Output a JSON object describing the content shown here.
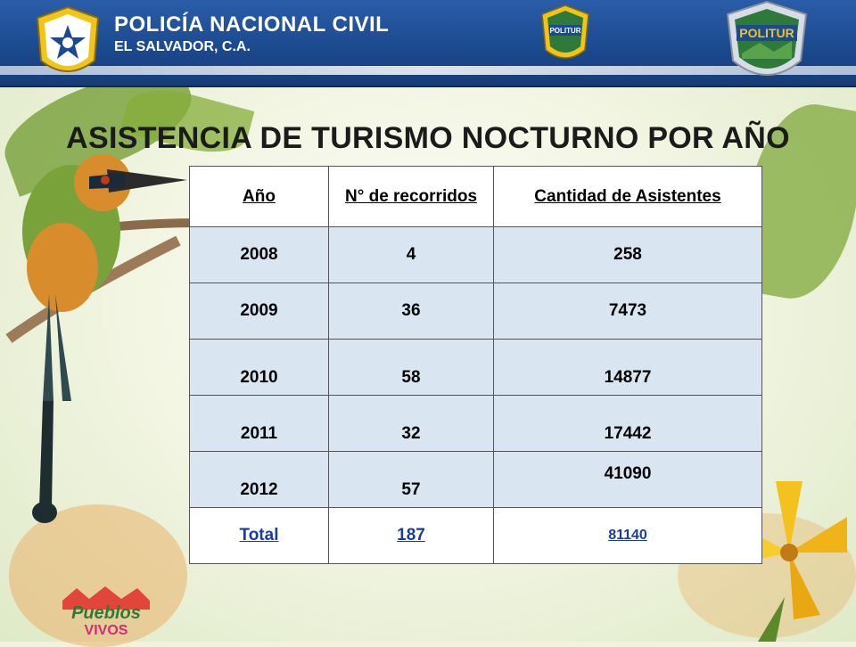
{
  "header": {
    "org_name": "POLICÍA NACIONAL CIVIL",
    "org_location": "EL SALVADOR, C.A.",
    "logo_left_label": "POLICIA NACIONAL CIVIL",
    "politur_small_top": "TURISMO NOCTURNO",
    "politur_small_label": "POLITUR",
    "politur_big_top": "EL SALVADOR",
    "politur_big_label": "POLITUR",
    "politur_big_bottom": "POLICIA NACIONAL CIVIL"
  },
  "slide": {
    "title": "ASISTENCIA DE TURISMO NOCTURNO POR AÑO"
  },
  "table": {
    "headers": [
      "Año",
      "N° de recorridos",
      "Cantidad de Asistentes"
    ],
    "rows": [
      [
        "2008",
        "4",
        "258"
      ],
      [
        "2009",
        "36",
        "7473"
      ],
      [
        "2010",
        "58",
        "14877"
      ],
      [
        "2011",
        "32",
        "17442"
      ],
      [
        "2012",
        "57",
        "41090"
      ]
    ],
    "total": [
      "Total",
      "187",
      "81140"
    ]
  },
  "branding": {
    "pueblos_line1": "Pueblos",
    "pueblos_line2": "VIVOS"
  },
  "colors": {
    "header_blue": "#1c4a8f",
    "cell_fill": "#d9e6f2",
    "total_link": "#1a3c9e"
  }
}
